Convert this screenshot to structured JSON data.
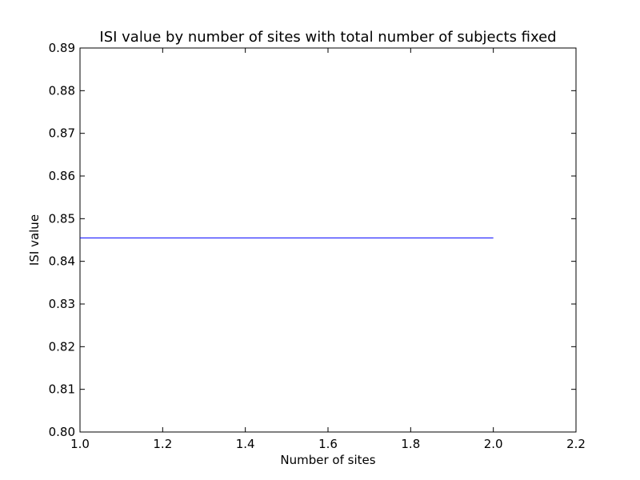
{
  "chart_data": {
    "type": "line",
    "title": "ISI value by number of sites with total number of subjects fixed",
    "xlabel": "Number of sites",
    "ylabel": "ISI value",
    "xlim": [
      1.0,
      2.2
    ],
    "ylim": [
      0.8,
      0.89
    ],
    "x_ticks": [
      "1.0",
      "1.2",
      "1.4",
      "1.6",
      "1.8",
      "2.0",
      "2.2"
    ],
    "y_ticks": [
      "0.80",
      "0.81",
      "0.82",
      "0.83",
      "0.84",
      "0.85",
      "0.86",
      "0.87",
      "0.88",
      "0.89"
    ],
    "grid": false,
    "series": [
      {
        "color": "#0000ff",
        "x": [
          1,
          2
        ],
        "y": [
          0.8455,
          0.8455
        ]
      }
    ]
  }
}
